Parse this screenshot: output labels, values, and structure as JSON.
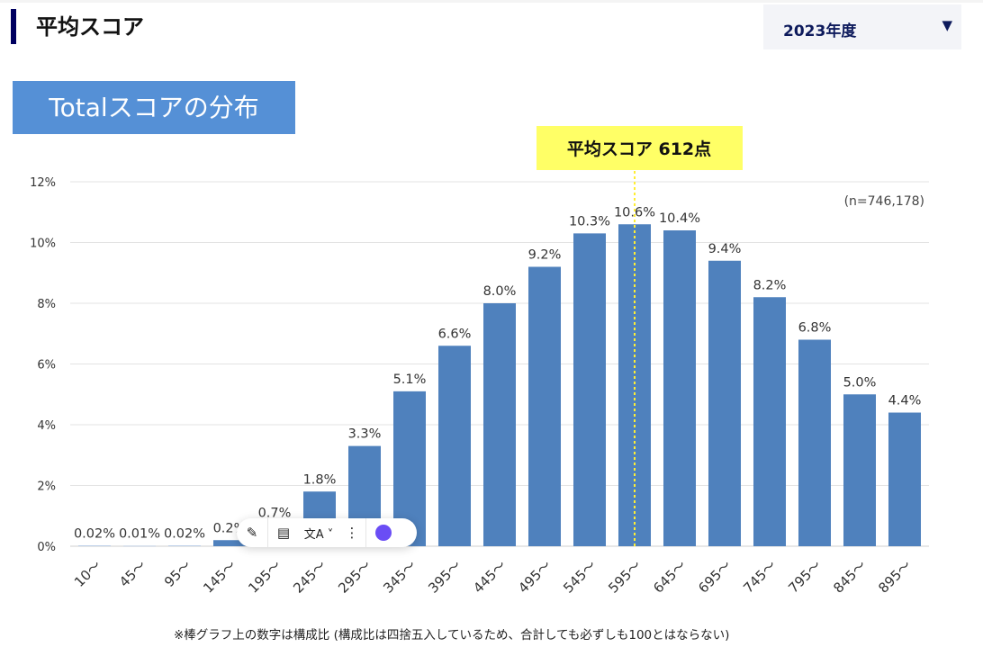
{
  "header": {
    "title": "平均スコア",
    "year_select": "2023年度"
  },
  "badge": "Totalスコアの分布",
  "note": "※棒グラフ上の数字は構成比 (構成比は四捨五入しているため、合計しても必ずしも100とはならない)",
  "colors": {
    "bar": "#4f81bd",
    "badge": "#5590d6",
    "mean_label_bg": "#ffff66",
    "accent": "#000060"
  },
  "chart_data": {
    "type": "bar",
    "title": "Totalスコアの分布",
    "categories": [
      "10～",
      "45～",
      "95～",
      "145～",
      "195～",
      "245～",
      "295～",
      "345～",
      "395～",
      "445～",
      "495～",
      "545～",
      "595～",
      "645～",
      "695～",
      "745～",
      "795～",
      "845～",
      "895～"
    ],
    "values": [
      0.02,
      0.01,
      0.02,
      0.2,
      0.7,
      1.8,
      3.3,
      5.1,
      6.6,
      8.0,
      9.2,
      10.3,
      10.6,
      10.4,
      9.4,
      8.2,
      6.8,
      5.0,
      4.4
    ],
    "labels": [
      "0.02%",
      "0.01%",
      "0.02%",
      "0.2%",
      "0.7%",
      "1.8%",
      "3.3%",
      "5.1%",
      "6.6%",
      "8.0%",
      "9.2%",
      "10.3%",
      "10.6%",
      "10.4%",
      "9.4%",
      "8.2%",
      "6.8%",
      "5.0%",
      "4.4%"
    ],
    "yticks": [
      "0%",
      "2%",
      "4%",
      "6%",
      "8%",
      "10%",
      "12%"
    ],
    "ylim": [
      0,
      12
    ],
    "grid": true,
    "sample_size": "(n=746,178)",
    "mean_label": "平均スコア 612点",
    "mean_category_index": 12
  }
}
